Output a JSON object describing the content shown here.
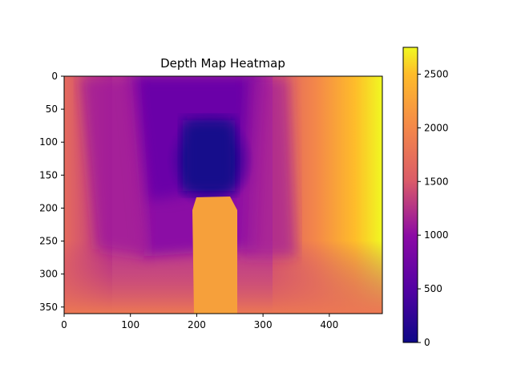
{
  "chart_data": {
    "type": "heatmap",
    "title": "Depth Map Heatmap",
    "xlabel": "",
    "ylabel": "",
    "xlim": [
      0,
      480
    ],
    "ylim": [
      360,
      0
    ],
    "x_ticks": [
      0,
      100,
      200,
      300,
      400
    ],
    "y_ticks": [
      0,
      50,
      100,
      150,
      200,
      250,
      300,
      350
    ],
    "colormap": "plasma",
    "colorbar": {
      "range": [
        0,
        2750
      ],
      "ticks": [
        0,
        500,
        1000,
        1500,
        2000,
        2500
      ]
    },
    "depth_samples": [
      {
        "x": 20,
        "y": 20,
        "value": 1650
      },
      {
        "x": 60,
        "y": 40,
        "value": 1350
      },
      {
        "x": 130,
        "y": 30,
        "value": 900
      },
      {
        "x": 200,
        "y": 60,
        "value": 600
      },
      {
        "x": 215,
        "y": 130,
        "value": 120
      },
      {
        "x": 280,
        "y": 60,
        "value": 800
      },
      {
        "x": 340,
        "y": 100,
        "value": 1250
      },
      {
        "x": 400,
        "y": 150,
        "value": 1900
      },
      {
        "x": 460,
        "y": 200,
        "value": 2650
      },
      {
        "x": 140,
        "y": 220,
        "value": 850
      },
      {
        "x": 320,
        "y": 250,
        "value": 1000
      },
      {
        "x": 230,
        "y": 270,
        "value": 2200
      },
      {
        "x": 40,
        "y": 320,
        "value": 1900
      },
      {
        "x": 420,
        "y": 330,
        "value": 2000
      }
    ],
    "gradient_stops": [
      {
        "value": 0,
        "color": "#0d0887"
      },
      {
        "value": 500,
        "color": "#5302a3"
      },
      {
        "value": 1000,
        "color": "#8b0aa5"
      },
      {
        "value": 1500,
        "color": "#db5c68"
      },
      {
        "value": 2000,
        "color": "#f48849"
      },
      {
        "value": 2500,
        "color": "#febc2a"
      },
      {
        "value": 2750,
        "color": "#f0f921"
      }
    ]
  }
}
